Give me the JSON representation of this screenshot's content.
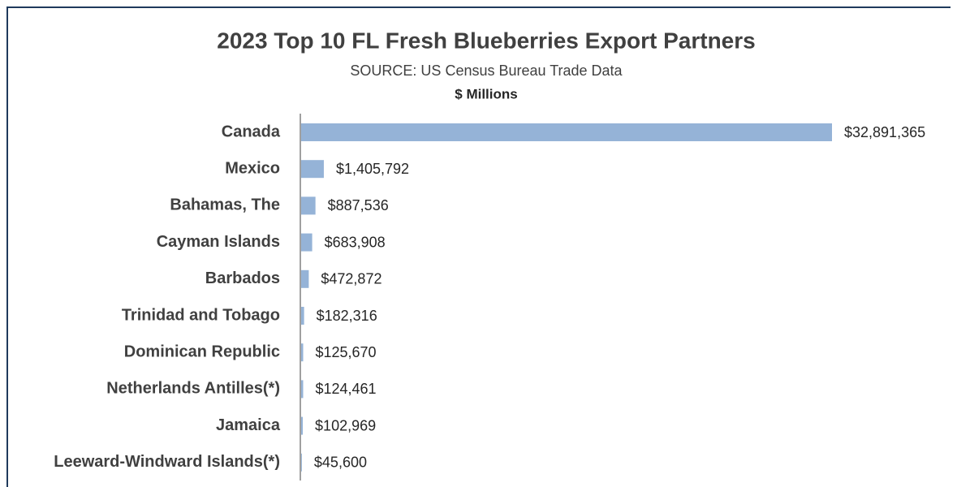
{
  "chart_data": {
    "type": "bar",
    "orientation": "horizontal",
    "title": "2023 Top 10 FL Fresh Blueberries Export Partners",
    "subtitle": "SOURCE: US Census Bureau Trade Data",
    "unit_label": "$ Millions",
    "categories": [
      "Canada",
      "Mexico",
      "Bahamas, The",
      "Cayman Islands",
      "Barbados",
      "Trinidad and Tobago",
      "Dominican Republic",
      "Netherlands Antilles(*)",
      "Jamaica",
      "Leeward-Windward Islands(*)"
    ],
    "values": [
      32891365,
      1405792,
      887536,
      683908,
      472872,
      182316,
      125670,
      124461,
      102969,
      45600
    ],
    "value_labels": [
      "$32,891,365",
      "$1,405,792",
      "$887,536",
      "$683,908",
      "$472,872",
      "$182,316",
      "$125,670",
      "$124,461",
      "$102,969",
      "$45,600"
    ],
    "color": "#95b3d7"
  }
}
